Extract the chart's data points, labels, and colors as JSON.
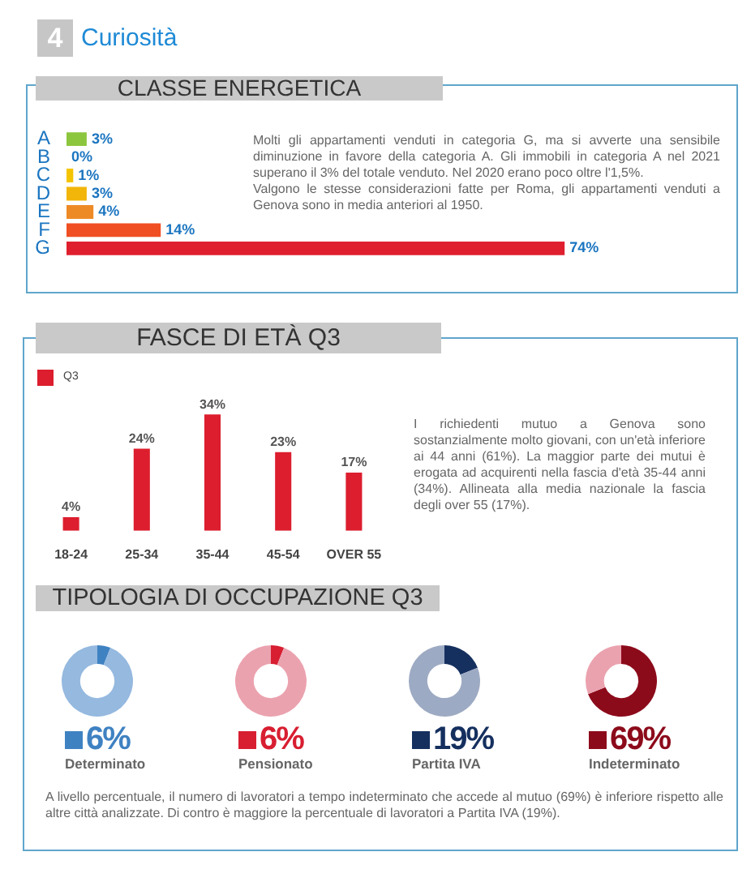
{
  "chart_data": [
    {
      "type": "other",
      "title": "Curiosità",
      "annotations": [
        "4"
      ]
    },
    {
      "type": "bar",
      "orientation": "horizontal",
      "title": "CLASSE ENERGETICA",
      "categories": [
        "A",
        "B",
        "C",
        "D",
        "E",
        "F",
        "G"
      ],
      "values": [
        3,
        0,
        1,
        3,
        4,
        14,
        74
      ],
      "colors": [
        "#8cc63e",
        "#c5d62e",
        "#f5c400",
        "#f2b50a",
        "#ee8a26",
        "#f04e23",
        "#df1f2e"
      ],
      "value_labels": [
        "3%",
        "0%",
        "1%",
        "3%",
        "4%",
        "14%",
        "74%"
      ],
      "annotations": [
        "Molti gli appartamenti venduti in categoria G, ma si avverte una sensibile diminuzione in favore della categoria A. Gli immobili in categoria A nel 2021 superano il 3% del totale venduto. Nel 2020 erano poco oltre l'1,5%.",
        "Valgono le stesse considerazioni fatte per Roma, gli appartamenti venduti a Genova sono in media anteriori al 1950."
      ]
    },
    {
      "type": "bar",
      "title": "FASCE DI ETÀ Q3",
      "categories": [
        "18-24",
        "25-34",
        "35-44",
        "45-54",
        "OVER 55"
      ],
      "series": [
        {
          "name": "Q3",
          "color": "#dc1e2e",
          "values": [
            4,
            24,
            34,
            23,
            17
          ],
          "value_labels": [
            "4%",
            "24%",
            "34%",
            "23%",
            "17%"
          ]
        }
      ],
      "legend": "top left",
      "annotations": [
        "I richiedenti mutuo a Genova sono sostanzialmente molto giovani, con un'età inferiore ai 44 anni (61%). La maggior parte dei mutui è erogata ad acquirenti nella fascia d'età 35-44 anni (34%). Allineata alla media nazionale la fascia degli over 55 (17%)."
      ]
    },
    {
      "type": "other",
      "title": "TIPOLOGIA DI OCCUPAZIONE Q3"
    },
    {
      "type": "donut",
      "categories": [
        "Determinato",
        null
      ],
      "values": [
        6,
        94
      ],
      "colors": [
        "#3f82c2",
        "#95b9df"
      ],
      "value_labels": [
        "6%",
        null
      ],
      "legend": "bottom"
    },
    {
      "type": "donut",
      "categories": [
        "Pensionato",
        null
      ],
      "values": [
        6,
        94
      ],
      "colors": [
        "#d81e31",
        "#eba2af"
      ],
      "value_labels": [
        "6%",
        null
      ],
      "legend": "bottom"
    },
    {
      "type": "donut",
      "categories": [
        "Partita IVA",
        null
      ],
      "values": [
        19,
        81
      ],
      "colors": [
        "#15305f",
        "#9daac3"
      ],
      "value_labels": [
        "19%",
        null
      ],
      "legend": "bottom"
    },
    {
      "type": "donut",
      "categories": [
        "Indeterminato",
        null
      ],
      "values": [
        69,
        31
      ],
      "colors": [
        "#8c0b1b",
        "#eba2af"
      ],
      "value_labels": [
        "69%",
        null
      ],
      "legend": "bottom"
    },
    {
      "type": "other",
      "annotations": [
        "A livello percentuale, il numero di lavoratori a tempo indeterminato che accede al mutuo (69%) è inferiore rispetto alle altre città analizzate. Di contro è maggiore la percentuale di lavoratori a Partita IVA (19%)."
      ]
    }
  ]
}
